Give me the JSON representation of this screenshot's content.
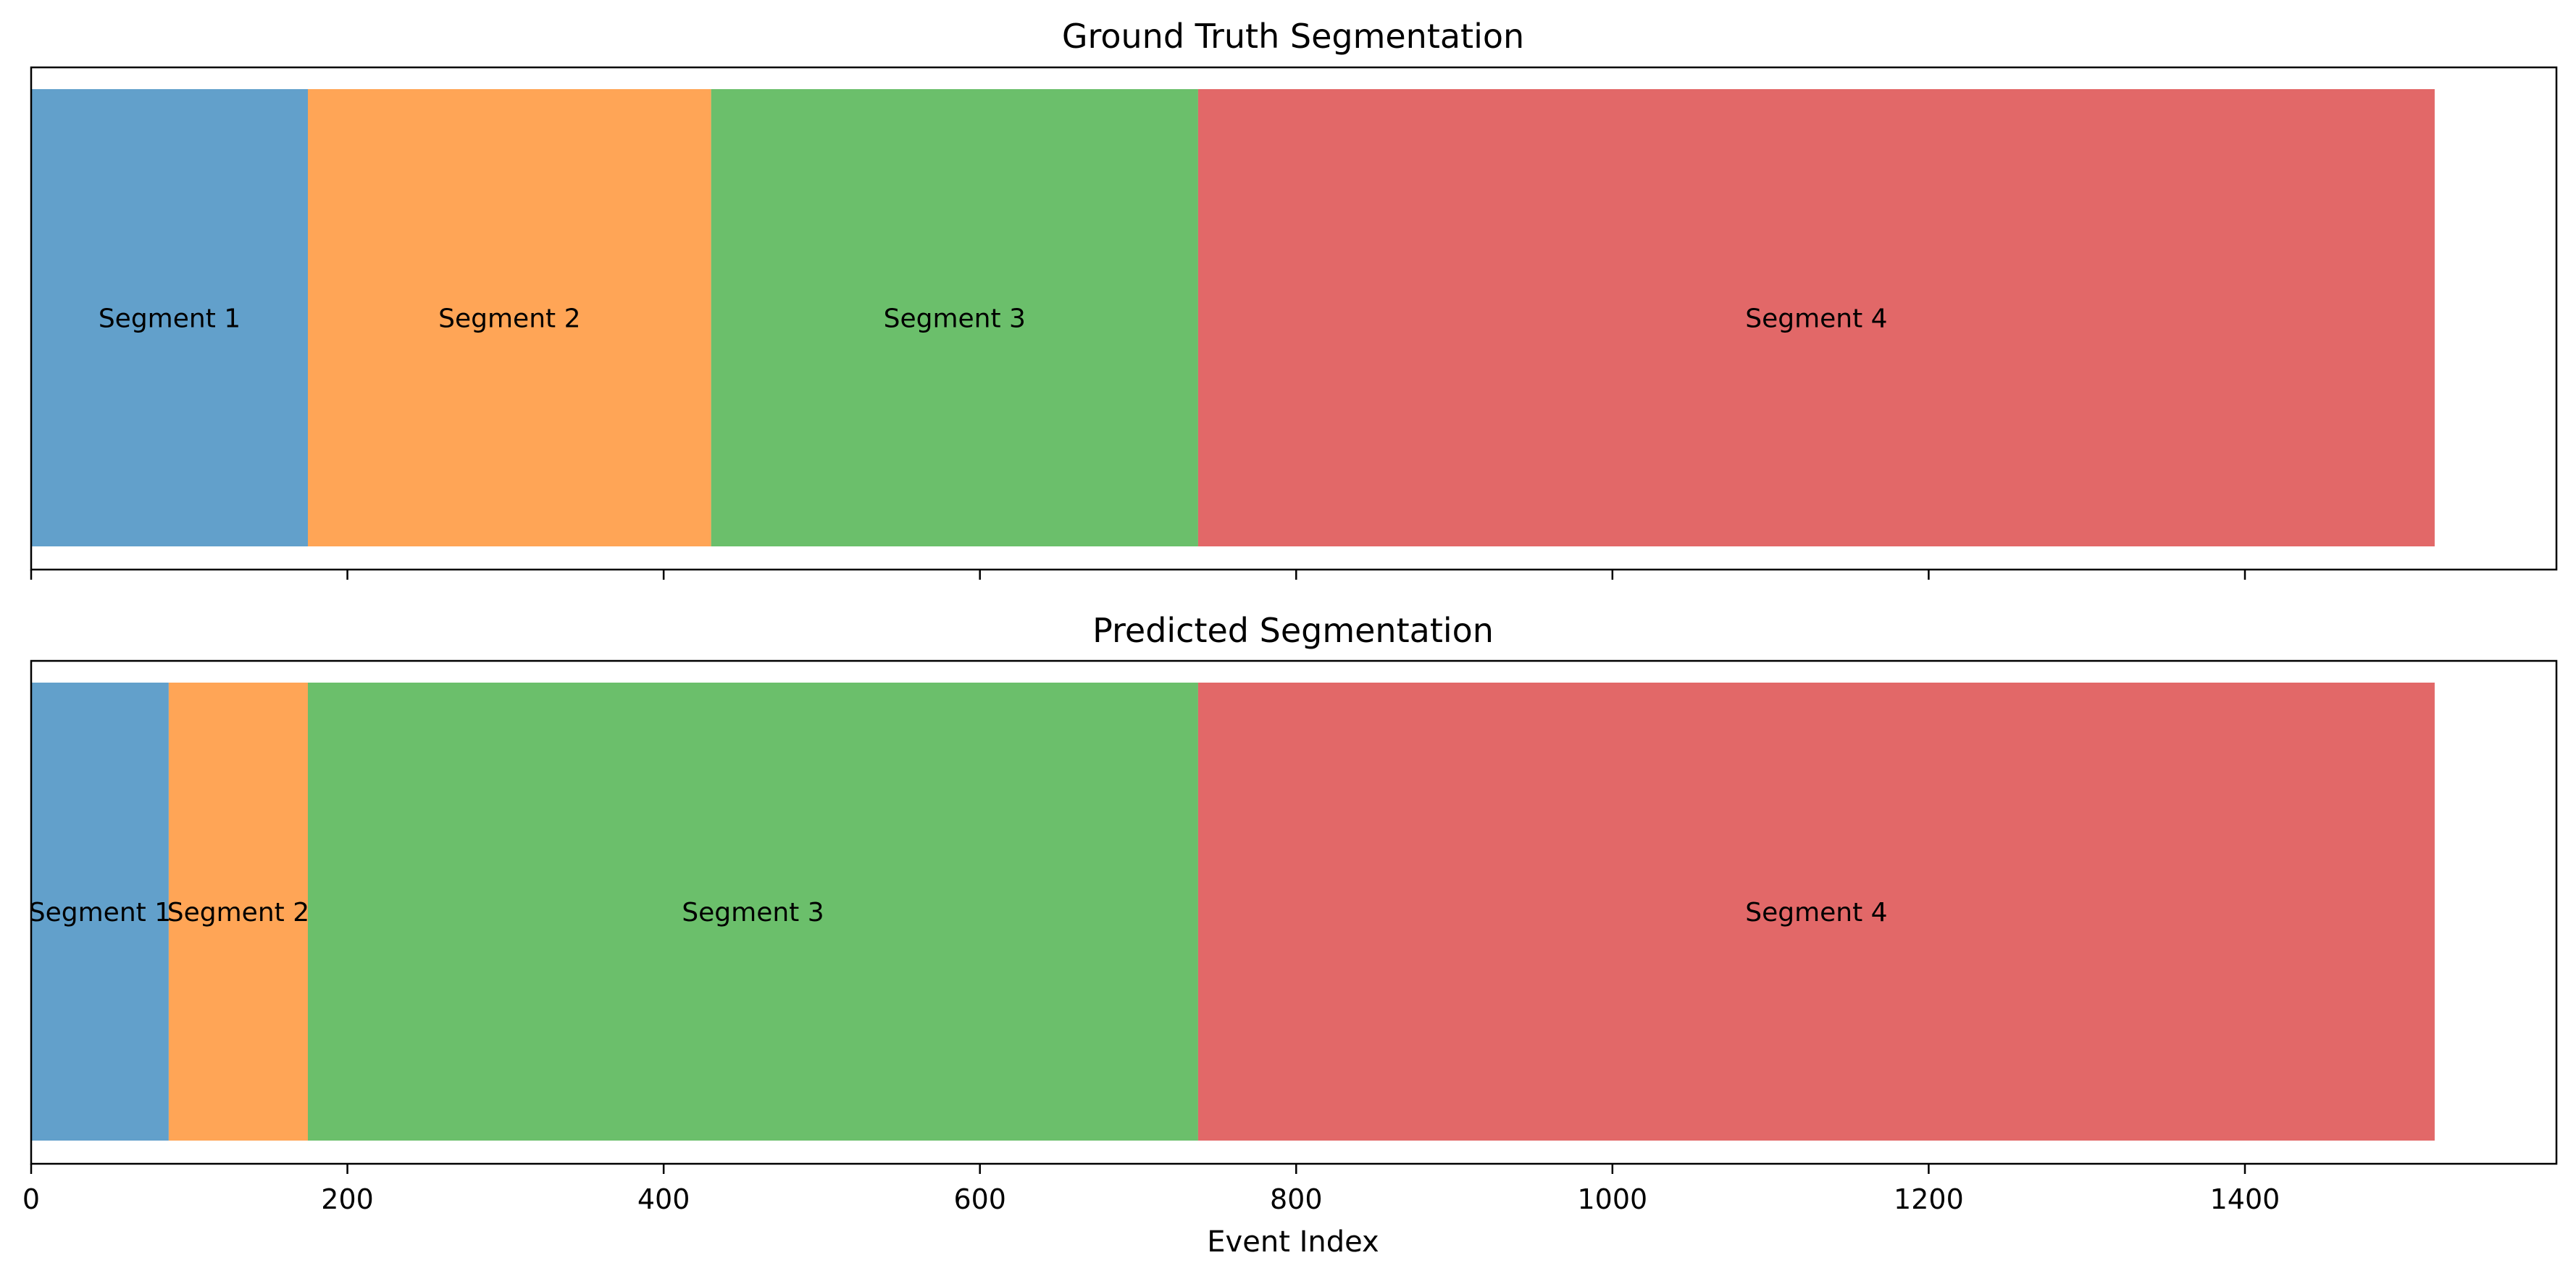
{
  "chart_data": [
    {
      "type": "bar",
      "orientation": "horizontal-stacked",
      "title": "Ground Truth Segmentation",
      "segments": [
        {
          "label": "Segment 1",
          "start": 0,
          "end": 175,
          "color": "#62a0cb"
        },
        {
          "label": "Segment 2",
          "start": 175,
          "end": 430,
          "color": "#ffa556"
        },
        {
          "label": "Segment 3",
          "start": 430,
          "end": 738,
          "color": "#6bbf6b"
        },
        {
          "label": "Segment 4",
          "start": 738,
          "end": 1520,
          "color": "#e26868"
        }
      ],
      "xlim": [
        0,
        1597
      ],
      "xticks": [
        0,
        200,
        400,
        600,
        800,
        1000,
        1200,
        1400
      ],
      "show_tick_labels": false,
      "xlabel": ""
    },
    {
      "type": "bar",
      "orientation": "horizontal-stacked",
      "title": "Predicted Segmentation",
      "segments": [
        {
          "label": "Segment 1",
          "start": 0,
          "end": 87,
          "color": "#62a0cb"
        },
        {
          "label": "Segment 2",
          "start": 87,
          "end": 175,
          "color": "#ffa556"
        },
        {
          "label": "Segment 3",
          "start": 175,
          "end": 738,
          "color": "#6bbf6b"
        },
        {
          "label": "Segment 4",
          "start": 738,
          "end": 1520,
          "color": "#e26868"
        }
      ],
      "xlim": [
        0,
        1597
      ],
      "xticks": [
        0,
        200,
        400,
        600,
        800,
        1000,
        1200,
        1400
      ],
      "show_tick_labels": true,
      "xlabel": "Event Index"
    }
  ]
}
